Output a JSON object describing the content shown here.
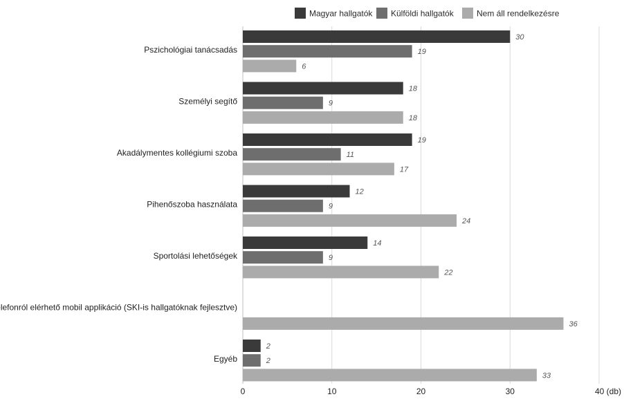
{
  "chart_data": {
    "type": "bar",
    "orientation": "horizontal",
    "categories": [
      "Pszichológiai tanácsadás",
      "Személyi segítő",
      "Akadálymentes kollégiumi szoba",
      "Pihenőszoba használata",
      "Sportolási lehetőségek",
      "Telefonról elérhető mobil applikáció (SKI-is hallgatóknak fejlesztve)",
      "Egyéb"
    ],
    "series": [
      {
        "name": "Magyar hallgatók",
        "color": "#3a3a3a",
        "values": [
          30,
          18,
          19,
          12,
          14,
          null,
          2
        ]
      },
      {
        "name": "Külföldi hallgatók",
        "color": "#6e6e6e",
        "values": [
          19,
          9,
          11,
          9,
          9,
          null,
          2
        ]
      },
      {
        "name": "Nem áll rendelkezésre",
        "color": "#ababab",
        "values": [
          6,
          18,
          17,
          24,
          22,
          36,
          33
        ]
      }
    ],
    "xlim": [
      0,
      40
    ],
    "xticks": [
      0,
      10,
      20,
      30,
      40
    ],
    "xtick_labels": [
      "0",
      "10",
      "20",
      "30",
      "40 (db)"
    ],
    "grid": true,
    "legend_position": "top"
  }
}
